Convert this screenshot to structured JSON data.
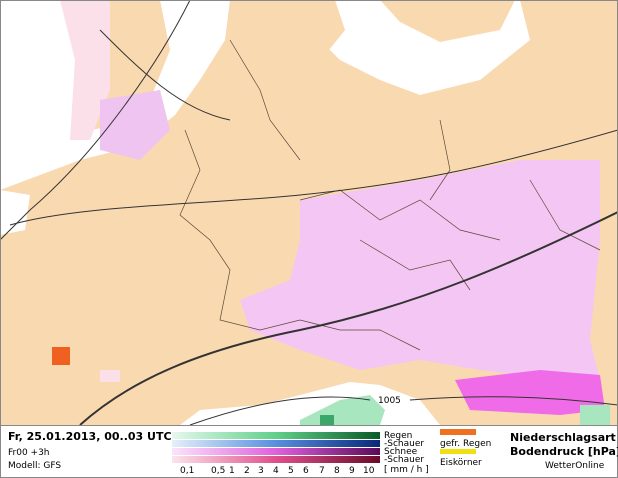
{
  "header": {
    "date": "Fr, 25.01.2013, 00..03 UTC",
    "run": "Fr00 +3h",
    "model": "Modell: GFS"
  },
  "map": {
    "isobar_label": "1005"
  },
  "legend": {
    "types": [
      "Regen",
      "-Schauer",
      "Schnee",
      "-Schauer"
    ],
    "special": [
      "gefr. Regen",
      "Eiskörner"
    ],
    "scale_labels": [
      "0,1",
      "0,5",
      "1",
      "2",
      "3",
      "4",
      "5",
      "6",
      "7",
      "8",
      "9",
      "10"
    ],
    "unit": "[ mm / h ]"
  },
  "title": {
    "line1": "Niederschlagsart",
    "line2": "Bodendruck [hPa]",
    "brand": "WetterOnline"
  }
}
